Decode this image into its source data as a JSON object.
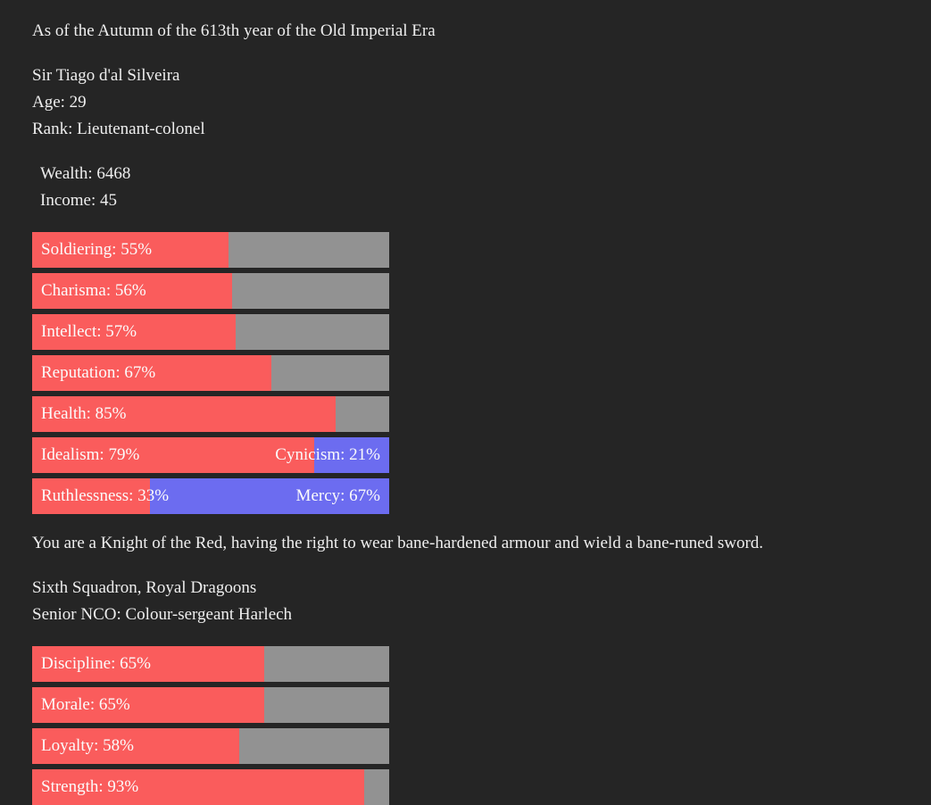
{
  "colors": {
    "background": "#252525",
    "text": "#eeeeee",
    "bar_text": "#fbfbfb",
    "bar_fill": "#fa5c5c",
    "bar_empty": "#929292",
    "bar_opposed": "#6c6cf0"
  },
  "header": {
    "date_line": "As of the Autumn of the 613th year of the Old Imperial Era"
  },
  "character": {
    "name": "Sir Tiago d'al Silveira",
    "age": "Age: 29",
    "rank": "Rank: Lieutenant-colonel",
    "wealth": "Wealth: 6468",
    "income": "Income: 45"
  },
  "knighthood_text": "You are a Knight of the Red, having the right to wear bane-hardened armour and wield a bane-runed sword.",
  "unit": {
    "name": "Sixth Squadron, Royal Dragoons",
    "senior_nco": "Senior NCO: Colour-sergeant Harlech"
  },
  "stat_groups": [
    {
      "title": "character-stats",
      "bars": [
        {
          "name": "soldiering",
          "kind": "single",
          "label": "Soldiering: 55%",
          "percent": 55
        },
        {
          "name": "charisma",
          "kind": "single",
          "label": "Charisma: 56%",
          "percent": 56
        },
        {
          "name": "intellect",
          "kind": "single",
          "label": "Intellect: 57%",
          "percent": 57
        },
        {
          "name": "reputation",
          "kind": "single",
          "label": "Reputation: 67%",
          "percent": 67
        },
        {
          "name": "health",
          "kind": "single",
          "label": "Health: 85%",
          "percent": 85
        },
        {
          "name": "idealism-cynicism",
          "kind": "opposed",
          "label": "Idealism: 79%",
          "right_label": "Cynicism: 21%",
          "percent": 79
        },
        {
          "name": "ruthlessness-mercy",
          "kind": "opposed",
          "label": "Ruthlessness: 33%",
          "right_label": "Mercy: 67%",
          "percent": 33
        }
      ]
    },
    {
      "title": "squadron-stats",
      "bars": [
        {
          "name": "discipline",
          "kind": "single",
          "label": "Discipline: 65%",
          "percent": 65
        },
        {
          "name": "morale",
          "kind": "single",
          "label": "Morale: 65%",
          "percent": 65
        },
        {
          "name": "loyalty",
          "kind": "single",
          "label": "Loyalty: 58%",
          "percent": 58
        },
        {
          "name": "strength",
          "kind": "single",
          "label": "Strength: 93%",
          "percent": 93
        }
      ]
    }
  ]
}
